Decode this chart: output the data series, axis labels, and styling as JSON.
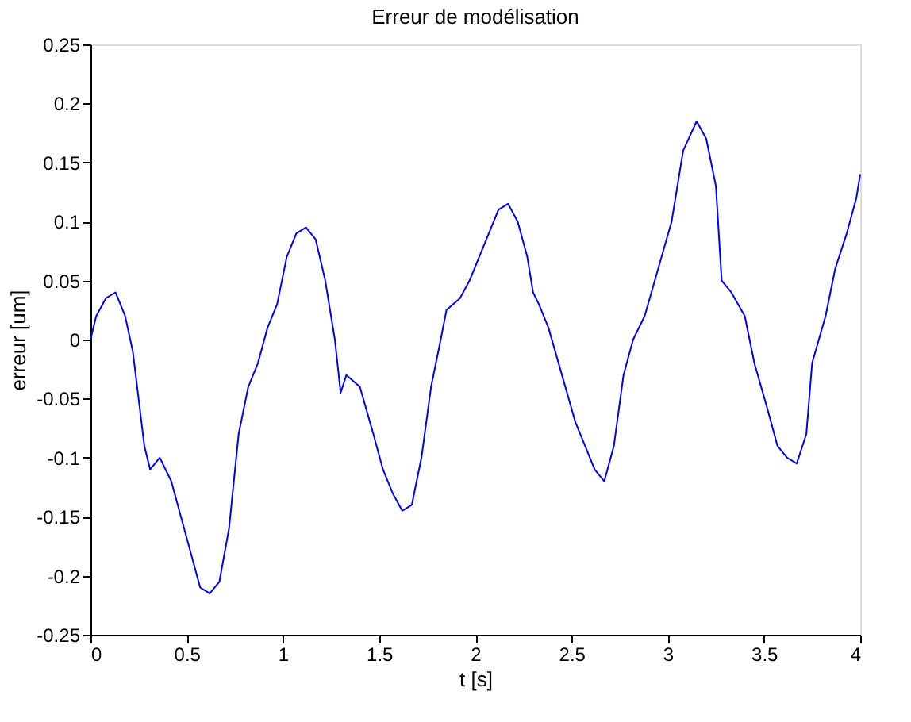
{
  "chart_data": {
    "type": "line",
    "title": "Erreur de modélisation",
    "xlabel": "t [s]",
    "ylabel": "erreur [um]",
    "x": [
      0,
      0.03,
      0.08,
      0.13,
      0.18,
      0.22,
      0.25,
      0.28,
      0.31,
      0.36,
      0.42,
      0.47,
      0.52,
      0.57,
      0.62,
      0.67,
      0.72,
      0.77,
      0.82,
      0.87,
      0.92,
      0.97,
      1.02,
      1.07,
      1.12,
      1.17,
      1.22,
      1.27,
      1.3,
      1.33,
      1.4,
      1.47,
      1.52,
      1.57,
      1.62,
      1.67,
      1.72,
      1.77,
      1.82,
      1.85,
      1.92,
      1.97,
      2.02,
      2.07,
      2.12,
      2.17,
      2.22,
      2.27,
      2.3,
      2.33,
      2.38,
      2.45,
      2.52,
      2.57,
      2.62,
      2.67,
      2.72,
      2.77,
      2.82,
      2.88,
      2.95,
      3.02,
      3.08,
      3.15,
      3.2,
      3.25,
      3.28,
      3.33,
      3.4,
      3.45,
      3.52,
      3.57,
      3.62,
      3.67,
      3.72,
      3.75,
      3.82,
      3.87,
      3.93,
      3.98,
      4.0
    ],
    "series": [
      {
        "color": "#0000ff",
        "values": [
          0.0,
          0.02,
          0.035,
          0.04,
          0.02,
          -0.01,
          -0.05,
          -0.09,
          -0.11,
          -0.1,
          -0.12,
          -0.15,
          -0.18,
          -0.21,
          -0.215,
          -0.205,
          -0.16,
          -0.08,
          -0.04,
          -0.02,
          0.01,
          0.03,
          0.07,
          0.09,
          0.095,
          0.085,
          0.05,
          0.0,
          -0.045,
          -0.03,
          -0.04,
          -0.08,
          -0.11,
          -0.13,
          -0.145,
          -0.14,
          -0.1,
          -0.04,
          0.0,
          0.025,
          0.035,
          0.05,
          0.07,
          0.09,
          0.11,
          0.115,
          0.1,
          0.07,
          0.04,
          0.03,
          0.01,
          -0.03,
          -0.07,
          -0.09,
          -0.11,
          -0.12,
          -0.09,
          -0.03,
          0.0,
          0.02,
          0.06,
          0.1,
          0.16,
          0.185,
          0.17,
          0.13,
          0.05,
          0.04,
          0.02,
          -0.02,
          -0.06,
          -0.09,
          -0.1,
          -0.105,
          -0.08,
          -0.02,
          0.02,
          0.06,
          0.09,
          0.12,
          0.14
        ]
      }
    ],
    "xlim": [
      0,
      4
    ],
    "xticks": [
      0,
      0.5,
      1,
      1.5,
      2,
      2.5,
      3,
      3.5,
      4
    ],
    "ylim": [
      -0.25,
      0.25
    ],
    "yticks": [
      -0.25,
      -0.2,
      -0.15,
      -0.1,
      -0.05,
      0,
      0.05,
      0.1,
      0.15,
      0.2,
      0.25
    ],
    "grid": false,
    "legend": false,
    "line_style": "solid",
    "marker": "none"
  }
}
